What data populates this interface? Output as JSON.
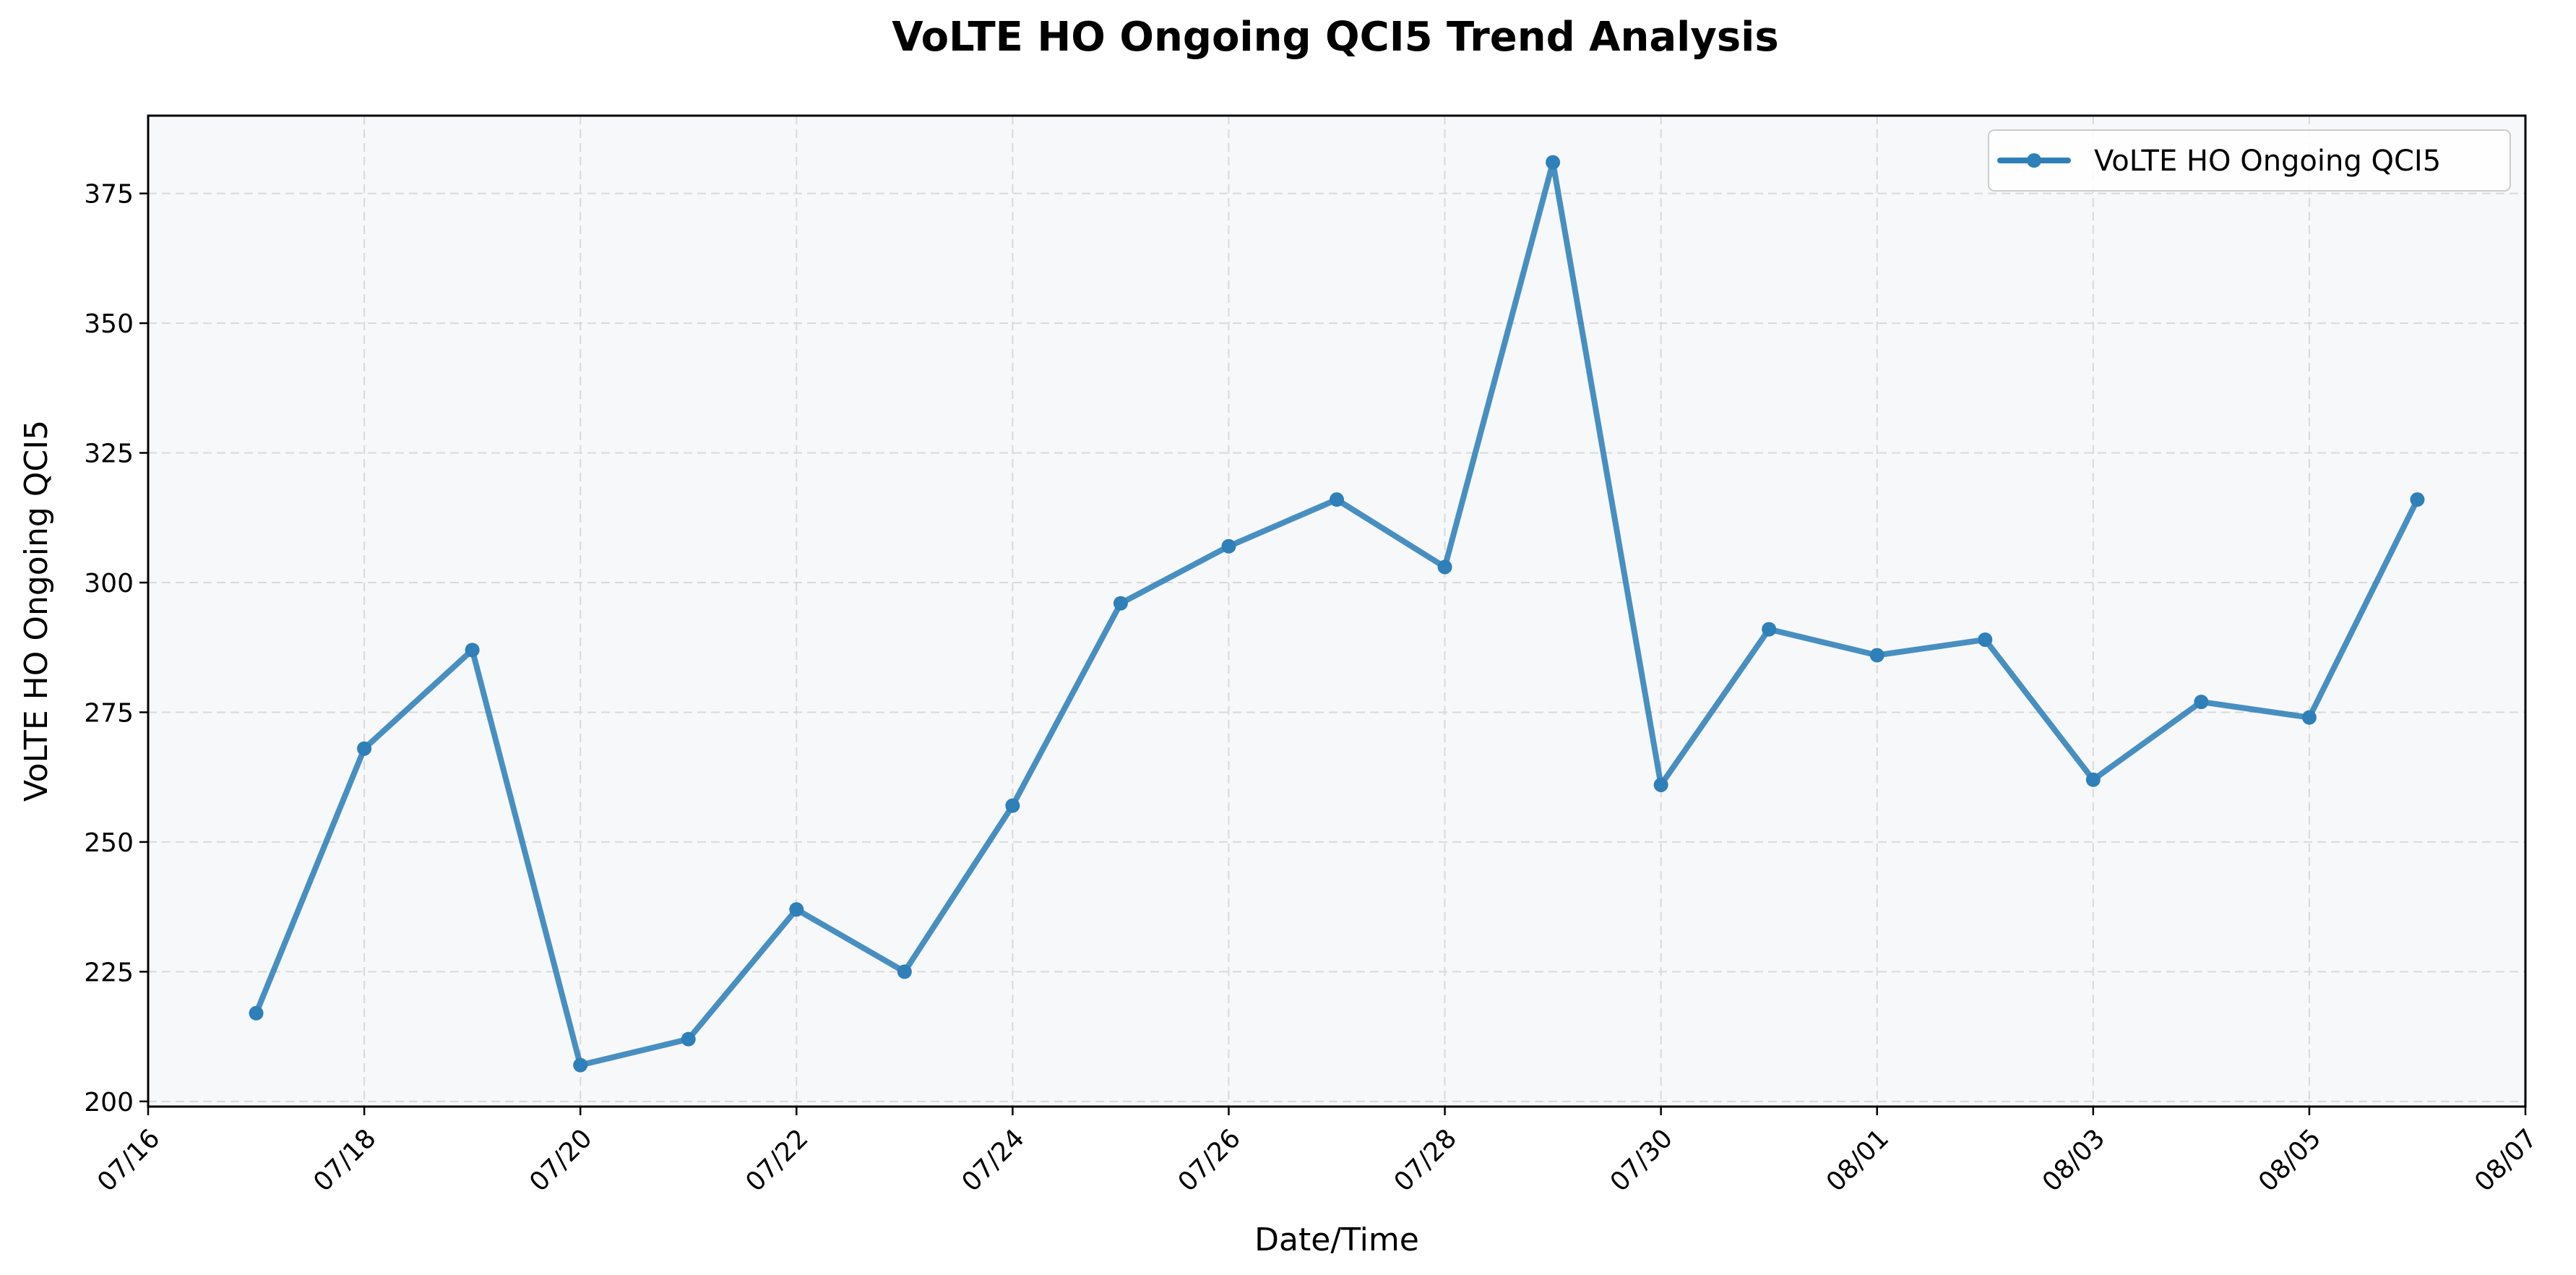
{
  "chart_data": {
    "type": "line",
    "title": "VoLTE HO Ongoing QCI5 Trend Analysis",
    "xlabel": "Date/Time",
    "ylabel": "VoLTE HO Ongoing QCI5",
    "x": [
      "2023-07-17",
      "2023-07-18",
      "2023-07-19",
      "2023-07-20",
      "2023-07-21",
      "2023-07-22",
      "2023-07-23",
      "2023-07-24",
      "2023-07-25",
      "2023-07-26",
      "2023-07-27",
      "2023-07-28",
      "2023-07-29",
      "2023-07-30",
      "2023-07-31",
      "2023-08-01",
      "2023-08-02",
      "2023-08-03",
      "2023-08-04",
      "2023-08-05",
      "2023-08-06"
    ],
    "series": [
      {
        "name": "VoLTE HO Ongoing QCI5",
        "values": [
          217,
          268,
          287,
          207,
          212,
          237,
          225,
          257,
          296,
          307,
          316,
          303,
          381,
          261,
          291,
          286,
          289,
          262,
          277,
          274,
          316
        ]
      }
    ],
    "xlim": [
      "2023-07-16",
      "2023-08-07"
    ],
    "ylim": [
      199,
      390
    ],
    "x_ticks": [
      "07/16",
      "07/18",
      "07/20",
      "07/22",
      "07/24",
      "07/26",
      "07/28",
      "07/30",
      "08/01",
      "08/03",
      "08/05",
      "08/07"
    ],
    "x_tick_dates": [
      "2023-07-16",
      "2023-07-18",
      "2023-07-20",
      "2023-07-22",
      "2023-07-24",
      "2023-07-26",
      "2023-07-28",
      "2023-07-30",
      "2023-08-01",
      "2023-08-03",
      "2023-08-05",
      "2023-08-07"
    ],
    "y_ticks": [
      200,
      225,
      250,
      275,
      300,
      325,
      350,
      375
    ],
    "grid": true,
    "legend_position": "upper right",
    "colors": {
      "line": "#2f7fb8",
      "plot_background": "#f7f8fa",
      "grid": "#d9d9d9"
    }
  }
}
